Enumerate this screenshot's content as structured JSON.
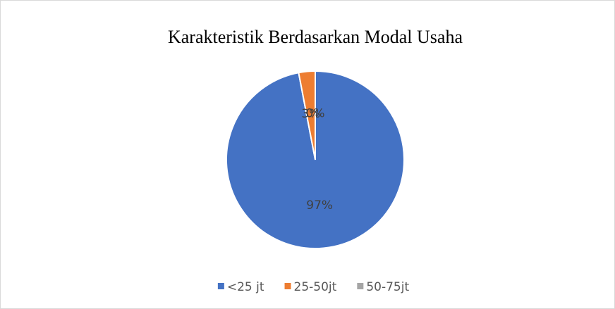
{
  "chart_data": {
    "type": "pie",
    "title": "Karakteristik Berdasarkan Modal Usaha",
    "categories": [
      "<25 jt",
      "25-50jt",
      "50-75jt"
    ],
    "values": [
      97,
      3,
      0
    ],
    "value_labels": [
      "97%",
      "3%",
      "0%"
    ],
    "colors": [
      "#4472c4",
      "#ed7d31",
      "#a5a5a5"
    ],
    "legend": "bottom"
  }
}
